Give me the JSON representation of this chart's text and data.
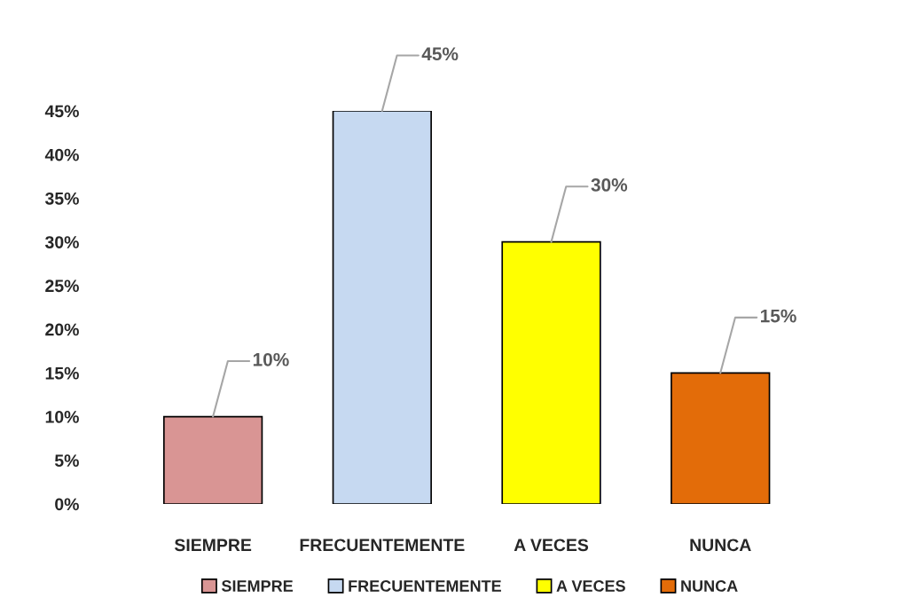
{
  "chart_data": {
    "type": "bar",
    "categories": [
      "SIEMPRE",
      "FRECUENTEMENTE",
      "A VECES",
      "NUNCA"
    ],
    "series": [
      {
        "name": "SIEMPRE",
        "color": "#d99594",
        "values": [
          10,
          null,
          null,
          null
        ],
        "value_labels": [
          "10%",
          null,
          null,
          null
        ]
      },
      {
        "name": "FRECUENTEMENTE",
        "color": "#c6d9f1",
        "values": [
          null,
          45,
          null,
          null
        ],
        "value_labels": [
          null,
          "45%",
          null,
          null
        ]
      },
      {
        "name": "A VECES",
        "color": "#ffff00",
        "values": [
          null,
          null,
          30,
          null
        ],
        "value_labels": [
          null,
          null,
          "30%",
          null
        ]
      },
      {
        "name": "NUNCA",
        "color": "#e36c09",
        "values": [
          null,
          null,
          null,
          15
        ],
        "value_labels": [
          null,
          null,
          null,
          "15%"
        ]
      }
    ],
    "ylim": [
      0,
      45
    ],
    "yticks": [
      {
        "value": 0,
        "label": "0%"
      },
      {
        "value": 5,
        "label": "5%"
      },
      {
        "value": 10,
        "label": "10%"
      },
      {
        "value": 15,
        "label": "15%"
      },
      {
        "value": 20,
        "label": "20%"
      },
      {
        "value": 25,
        "label": "25%"
      },
      {
        "value": 30,
        "label": "30%"
      },
      {
        "value": 35,
        "label": "35%"
      },
      {
        "value": 40,
        "label": "40%"
      },
      {
        "value": 45,
        "label": "45%"
      }
    ],
    "grid": false,
    "legend": "bottom"
  }
}
